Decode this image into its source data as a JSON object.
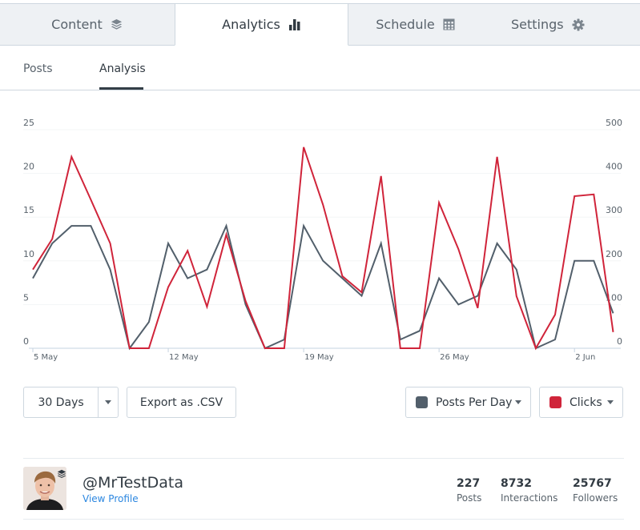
{
  "tabs": [
    {
      "label": "Content",
      "icon": "layers-icon",
      "active": false
    },
    {
      "label": "Analytics",
      "icon": "bar-chart-icon",
      "active": true
    },
    {
      "label": "Schedule",
      "icon": "calendar-icon",
      "active": false
    },
    {
      "label": "Settings",
      "icon": "gear-icon",
      "active": false
    }
  ],
  "subtabs": [
    {
      "label": "Posts",
      "active": false
    },
    {
      "label": "Analysis",
      "active": true
    }
  ],
  "colors": {
    "posts_series": "#525f6b",
    "clicks_series": "#d0243a",
    "link": "#2c87e0"
  },
  "chart_data": {
    "type": "line",
    "title": "",
    "xlabel": "",
    "ylabel": "Posts Per Day",
    "ylabel_right": "Clicks",
    "x": [
      "5 May",
      "6 May",
      "7 May",
      "8 May",
      "9 May",
      "10 May",
      "11 May",
      "12 May",
      "13 May",
      "14 May",
      "15 May",
      "16 May",
      "17 May",
      "18 May",
      "19 May",
      "20 May",
      "21 May",
      "22 May",
      "23 May",
      "24 May",
      "25 May",
      "26 May",
      "27 May",
      "28 May",
      "29 May",
      "30 May",
      "31 May",
      "1 Jun",
      "2 Jun",
      "3 Jun",
      "4 Jun"
    ],
    "x_tick_labels": [
      "5 May",
      "12 May",
      "19 May",
      "26 May",
      "2 Jun"
    ],
    "y_ticks_left": [
      0,
      5,
      10,
      15,
      20,
      25
    ],
    "y_ticks_right": [
      0,
      100,
      200,
      300,
      400,
      500
    ],
    "ylim": [
      0,
      25
    ],
    "ylim_right": [
      0,
      500
    ],
    "grid": true,
    "series": [
      {
        "name": "Posts Per Day",
        "axis": "left",
        "color": "#525f6b",
        "values": [
          8,
          12,
          14,
          14,
          9,
          0,
          3,
          12,
          8,
          9,
          14,
          5,
          0,
          1,
          14,
          10,
          8,
          6,
          12,
          1,
          2,
          8,
          5,
          6,
          12,
          9,
          0,
          1,
          10,
          10,
          4
        ]
      },
      {
        "name": "Clicks",
        "axis": "right",
        "color": "#d0243a",
        "values": [
          180,
          250,
          438,
          340,
          240,
          0,
          0,
          140,
          223,
          95,
          260,
          108,
          0,
          0,
          460,
          328,
          165,
          128,
          394,
          0,
          0,
          333,
          227,
          92,
          438,
          119,
          0,
          77,
          348,
          352,
          37
        ]
      }
    ]
  },
  "controls": {
    "range_label": "30 Days",
    "export_label": "Export as .CSV",
    "left_metric_label": "Posts Per Day",
    "right_metric_label": "Clicks"
  },
  "profile": {
    "handle": "@MrTestData",
    "view_profile_label": "View Profile",
    "stats": [
      {
        "value": "227",
        "label": "Posts"
      },
      {
        "value": "8732",
        "label": "Interactions"
      },
      {
        "value": "25767",
        "label": "Followers"
      }
    ]
  }
}
